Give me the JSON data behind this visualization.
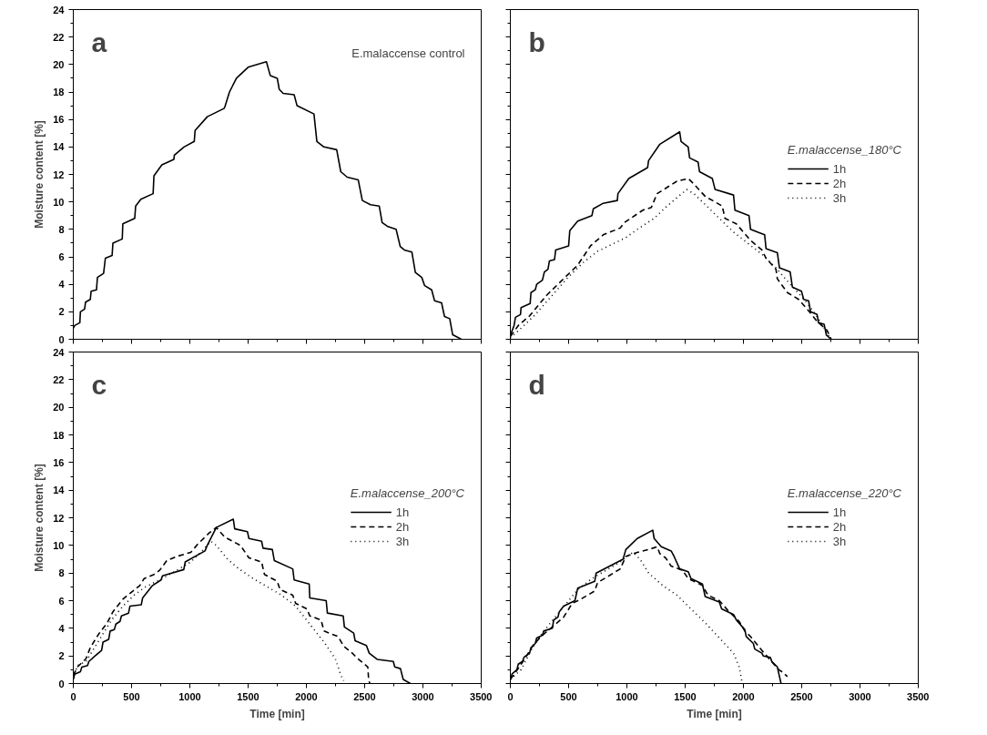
{
  "chart_data": [
    {
      "type": "line",
      "annotations": [
        "a",
        "E.malaccense control"
      ],
      "ylabel": "Moisture content [%]",
      "xlim": [
        0,
        3500
      ],
      "ylim": [
        0,
        24
      ],
      "xticks": [
        0,
        500,
        1000,
        1500,
        2000,
        2500,
        3000,
        3500
      ],
      "yticks": [
        0,
        2,
        4,
        6,
        8,
        10,
        12,
        14,
        16,
        18,
        20,
        22,
        24
      ],
      "tick_labels": "y",
      "series": [
        {
          "color": "#000000",
          "line_style": "solid",
          "x": [
            0,
            12,
            56,
            61,
            97,
            105,
            146,
            153,
            199,
            207,
            260,
            275,
            333,
            340,
            420,
            425,
            527,
            535,
            580,
            685,
            692,
            760,
            863,
            867,
            950,
            1038,
            1045,
            1150,
            1293,
            1300,
            1340,
            1400,
            1500,
            1657,
            1690,
            1750,
            1767,
            1800,
            1895,
            1920,
            2065,
            2090,
            2150,
            2260,
            2295,
            2350,
            2445,
            2480,
            2550,
            2625,
            2650,
            2700,
            2770,
            2805,
            2840,
            2905,
            2935,
            2990,
            3015,
            3075,
            3100,
            3160,
            3185,
            3230,
            3255,
            3330
          ],
          "values": [
            0.8,
            1.0,
            1.2,
            2.0,
            2.2,
            2.7,
            2.9,
            3.5,
            3.6,
            4.5,
            4.8,
            5.9,
            6.1,
            7.0,
            7.3,
            8.4,
            8.8,
            9.7,
            10.2,
            10.6,
            11.9,
            12.7,
            13.1,
            13.4,
            14.0,
            14.4,
            15.2,
            16.2,
            16.8,
            16.9,
            18.0,
            19.0,
            19.8,
            20.2,
            19.2,
            19.0,
            18.2,
            17.9,
            17.8,
            17.0,
            16.4,
            14.4,
            14.0,
            13.8,
            12.2,
            11.8,
            11.6,
            10.1,
            9.8,
            9.7,
            8.5,
            8.2,
            8.0,
            6.75,
            6.5,
            6.35,
            4.87,
            4.5,
            3.9,
            3.6,
            2.8,
            2.65,
            1.66,
            1.5,
            0.33,
            0
          ]
        }
      ]
    },
    {
      "type": "line",
      "annotations": [
        "b"
      ],
      "legend_title": "E.malaccense_180°C",
      "legend": "right",
      "xlim": [
        0,
        3500
      ],
      "ylim": [
        0,
        24
      ],
      "xticks": [
        0,
        500,
        1000,
        1500,
        2000,
        2500,
        3000,
        3500
      ],
      "yticks": [
        0,
        2,
        4,
        6,
        8,
        10,
        12,
        14,
        16,
        18,
        20,
        22,
        24
      ],
      "tick_labels": false,
      "series": [
        {
          "name": "1h",
          "color": "#000000",
          "line_style": "solid",
          "x": [
            0,
            32,
            44,
            87,
            92,
            170,
            177,
            214,
            226,
            275,
            292,
            323,
            335,
            379,
            389,
            500,
            510,
            578,
            700,
            712,
            797,
            918,
            923,
            1016,
            1178,
            1186,
            1283,
            1453,
            1465,
            1526,
            1538,
            1611,
            1623,
            1733,
            1757,
            1915,
            1927,
            2048,
            2061,
            2182,
            2194,
            2291,
            2309,
            2401,
            2420,
            2498,
            2517,
            2559,
            2576,
            2632,
            2644,
            2692,
            2712,
            2753
          ],
          "values": [
            0.3,
            1.0,
            1.6,
            1.8,
            2.3,
            2.6,
            3.4,
            3.6,
            4.0,
            4.3,
            4.9,
            5.1,
            5.7,
            5.8,
            6.5,
            6.8,
            7.9,
            8.6,
            9.0,
            9.5,
            9.9,
            10.1,
            10.6,
            11.7,
            12.5,
            13.0,
            14.2,
            15.1,
            14.4,
            14.0,
            13.2,
            12.9,
            12.2,
            11.7,
            10.9,
            10.5,
            9.4,
            9.0,
            8.0,
            7.6,
            6.6,
            6.3,
            5.2,
            4.9,
            3.8,
            3.5,
            2.9,
            2.8,
            2.0,
            1.8,
            1.2,
            1.1,
            0.3,
            0
          ]
        },
        {
          "name": "2h",
          "color": "#000000",
          "line_style": "dashed",
          "x": [
            0,
            68,
            165,
            311,
            578,
            688,
            797,
            943,
            979,
            1137,
            1210,
            1259,
            1429,
            1526,
            1575,
            1672,
            1818,
            1842,
            1939,
            2061,
            2158,
            2194,
            2279,
            2291,
            2377,
            2474,
            2547,
            2632,
            2717,
            2753
          ],
          "values": [
            0.2,
            1.0,
            1.7,
            3.2,
            5.4,
            6.8,
            7.6,
            8.1,
            8.5,
            9.4,
            9.6,
            10.6,
            11.5,
            11.7,
            11.3,
            10.4,
            9.7,
            8.8,
            8.4,
            7.2,
            6.5,
            5.9,
            5.1,
            4.4,
            3.4,
            2.9,
            2.2,
            1.3,
            0.66,
            0
          ]
        },
        {
          "name": "3h",
          "color": "#000000",
          "line_style": "dotted",
          "x": [
            0,
            92,
            214,
            360,
            505,
            627,
            748,
            870,
            991,
            1089,
            1234,
            1332,
            1429,
            1514,
            1575,
            1672,
            1793,
            1915,
            2036,
            2158,
            2279,
            2401,
            2522,
            2620,
            2717,
            2741
          ],
          "values": [
            0.1,
            0.8,
            1.8,
            3.2,
            4.6,
            5.6,
            6.4,
            6.9,
            7.4,
            8.0,
            8.8,
            9.6,
            10.3,
            10.9,
            10.6,
            9.8,
            8.8,
            7.8,
            7.0,
            6.2,
            5.2,
            4.0,
            2.9,
            1.8,
            0.5,
            0.1
          ]
        }
      ]
    },
    {
      "type": "line",
      "annotations": [
        "c"
      ],
      "legend_title": "E.malaccense_200°C",
      "legend": "right",
      "xlabel": "Time [min]",
      "ylabel": "Moisture content [%]",
      "xlim": [
        0,
        3500
      ],
      "ylim": [
        0,
        24
      ],
      "xticks": [
        0,
        500,
        1000,
        1500,
        2000,
        2500,
        3000,
        3500
      ],
      "yticks": [
        0,
        2,
        4,
        6,
        8,
        10,
        12,
        14,
        16,
        18,
        20,
        22,
        24
      ],
      "series": [
        {
          "name": "1h",
          "color": "#000000",
          "line_style": "solid",
          "x": [
            0,
            12,
            61,
            73,
            122,
            134,
            187,
            243,
            255,
            304,
            316,
            352,
            365,
            401,
            413,
            474,
            486,
            583,
            595,
            680,
            753,
            765,
            948,
            960,
            1130,
            1149,
            1227,
            1373,
            1385,
            1494,
            1507,
            1616,
            1628,
            1708,
            1725,
            1883,
            1895,
            2024,
            2029,
            2170,
            2180,
            2316,
            2326,
            2406,
            2418,
            2515,
            2539,
            2607,
            2746,
            2758,
            2807,
            2831,
            2892
          ],
          "values": [
            0.3,
            0.67,
            0.85,
            1.19,
            1.3,
            1.6,
            2.0,
            2.4,
            3.0,
            3.2,
            3.8,
            3.9,
            4.3,
            4.5,
            4.9,
            5.1,
            5.6,
            5.7,
            6.2,
            7.1,
            7.5,
            7.8,
            8.25,
            8.8,
            9.6,
            10.0,
            11.3,
            11.9,
            11.2,
            11.0,
            10.5,
            10.3,
            9.8,
            9.7,
            8.9,
            8.3,
            7.5,
            7.2,
            6.2,
            6.0,
            5.1,
            4.9,
            4.1,
            3.65,
            3.1,
            2.75,
            2.2,
            1.75,
            1.6,
            1.2,
            1.08,
            0.3,
            0
          ]
        },
        {
          "name": "2h",
          "color": "#000000",
          "line_style": "dashed",
          "x": [
            0,
            36,
            109,
            146,
            219,
            292,
            340,
            425,
            498,
            571,
            608,
            693,
            741,
            802,
            887,
            1008,
            1069,
            1166,
            1227,
            1300,
            1434,
            1507,
            1616,
            1640,
            1750,
            1774,
            1883,
            1908,
            2005,
            2029,
            2126,
            2151,
            2272,
            2321,
            2394,
            2442,
            2527,
            2534,
            2544
          ],
          "values": [
            0.6,
            1.2,
            1.8,
            2.6,
            3.6,
            4.4,
            5.2,
            6.1,
            6.6,
            7.1,
            7.6,
            7.9,
            8.2,
            8.9,
            9.2,
            9.5,
            10.1,
            10.9,
            11.3,
            10.6,
            10.0,
            9.1,
            8.8,
            7.9,
            7.4,
            6.8,
            6.4,
            5.8,
            5.4,
            4.9,
            4.6,
            3.8,
            3.4,
            2.7,
            2.2,
            1.8,
            1.2,
            0.3,
            0
          ]
        },
        {
          "name": "3h",
          "color": "#000000",
          "line_style": "dotted",
          "x": [
            0,
            36,
            109,
            182,
            255,
            328,
            425,
            522,
            620,
            765,
            887,
            1008,
            1106,
            1179,
            1227,
            1324,
            1422,
            1543,
            1665,
            1786,
            1908,
            2029,
            2151,
            2248,
            2296,
            2321
          ],
          "values": [
            0.4,
            1.3,
            1.6,
            2.6,
            3.6,
            4.6,
            5.6,
            6.4,
            7.0,
            7.6,
            8.2,
            8.8,
            9.6,
            10.3,
            10.0,
            9.0,
            8.3,
            7.6,
            7.0,
            6.4,
            5.6,
            4.3,
            3.0,
            1.8,
            0.6,
            0.2
          ]
        }
      ]
    },
    {
      "type": "line",
      "annotations": [
        "d"
      ],
      "legend_title": "E.malaccense_220°C",
      "legend": "right",
      "xlabel": "Time [min]",
      "xlim": [
        0,
        3500
      ],
      "ylim": [
        0,
        24
      ],
      "xticks": [
        0,
        500,
        1000,
        1500,
        2000,
        2500,
        3000,
        3500
      ],
      "yticks": [
        0,
        2,
        4,
        6,
        8,
        10,
        12,
        14,
        16,
        18,
        20,
        22,
        24
      ],
      "tick_labels": "x",
      "series": [
        {
          "name": "1h",
          "color": "#000000",
          "line_style": "solid",
          "x": [
            0,
            15,
            56,
            68,
            104,
            117,
            165,
            177,
            214,
            226,
            275,
            287,
            360,
            372,
            408,
            420,
            457,
            554,
            578,
            724,
            736,
            967,
            991,
            1089,
            1222,
            1234,
            1295,
            1380,
            1405,
            1453,
            1526,
            1550,
            1648,
            1672,
            1793,
            1813,
            1915,
            1939,
            2012,
            2024,
            2085,
            2097,
            2158,
            2170,
            2231,
            2243,
            2291,
            2304,
            2323
          ],
          "values": [
            0.3,
            0.7,
            1.0,
            1.4,
            1.6,
            1.9,
            2.2,
            2.6,
            2.9,
            3.3,
            3.5,
            3.8,
            4.0,
            4.6,
            4.8,
            5.2,
            5.6,
            6.0,
            6.9,
            7.4,
            8.0,
            9.0,
            9.7,
            10.5,
            11.1,
            10.5,
            9.9,
            9.6,
            9.2,
            8.3,
            8.1,
            7.6,
            7.2,
            6.3,
            5.9,
            5.4,
            5.0,
            4.6,
            3.9,
            3.4,
            2.9,
            2.5,
            2.2,
            2.0,
            1.9,
            1.6,
            1.2,
            0.7,
            0
          ]
        },
        {
          "name": "2h",
          "color": "#000000",
          "line_style": "dashed",
          "x": [
            0,
            44,
            117,
            190,
            262,
            360,
            457,
            530,
            603,
            724,
            748,
            846,
            943,
            991,
            1089,
            1186,
            1259,
            1283,
            1332,
            1380,
            1477,
            1526,
            1648,
            1696,
            1793,
            1866,
            1963,
            2012,
            2061,
            2158,
            2231,
            2304,
            2340,
            2377
          ],
          "values": [
            0.3,
            0.8,
            1.7,
            2.7,
            3.4,
            4.1,
            4.8,
            5.8,
            6.1,
            6.7,
            7.3,
            7.8,
            8.3,
            9.2,
            9.5,
            9.7,
            9.9,
            9.4,
            9.1,
            8.5,
            8.2,
            7.6,
            7.1,
            6.4,
            6.0,
            5.3,
            4.5,
            3.8,
            3.4,
            2.4,
            1.7,
            1.0,
            0.8,
            0.5
          ]
        },
        {
          "name": "3h",
          "color": "#000000",
          "line_style": "dotted",
          "x": [
            0,
            92,
            190,
            287,
            384,
            481,
            578,
            700,
            821,
            943,
            1052,
            1113,
            1186,
            1307,
            1429,
            1550,
            1672,
            1793,
            1915,
            1963,
            1988
          ],
          "values": [
            0.3,
            1.0,
            2.6,
            3.8,
            4.8,
            5.8,
            6.8,
            7.6,
            8.2,
            8.8,
            9.5,
            9.0,
            8.0,
            7.1,
            6.4,
            5.4,
            4.4,
            3.3,
            2.2,
            1.2,
            0.1
          ]
        }
      ]
    }
  ]
}
